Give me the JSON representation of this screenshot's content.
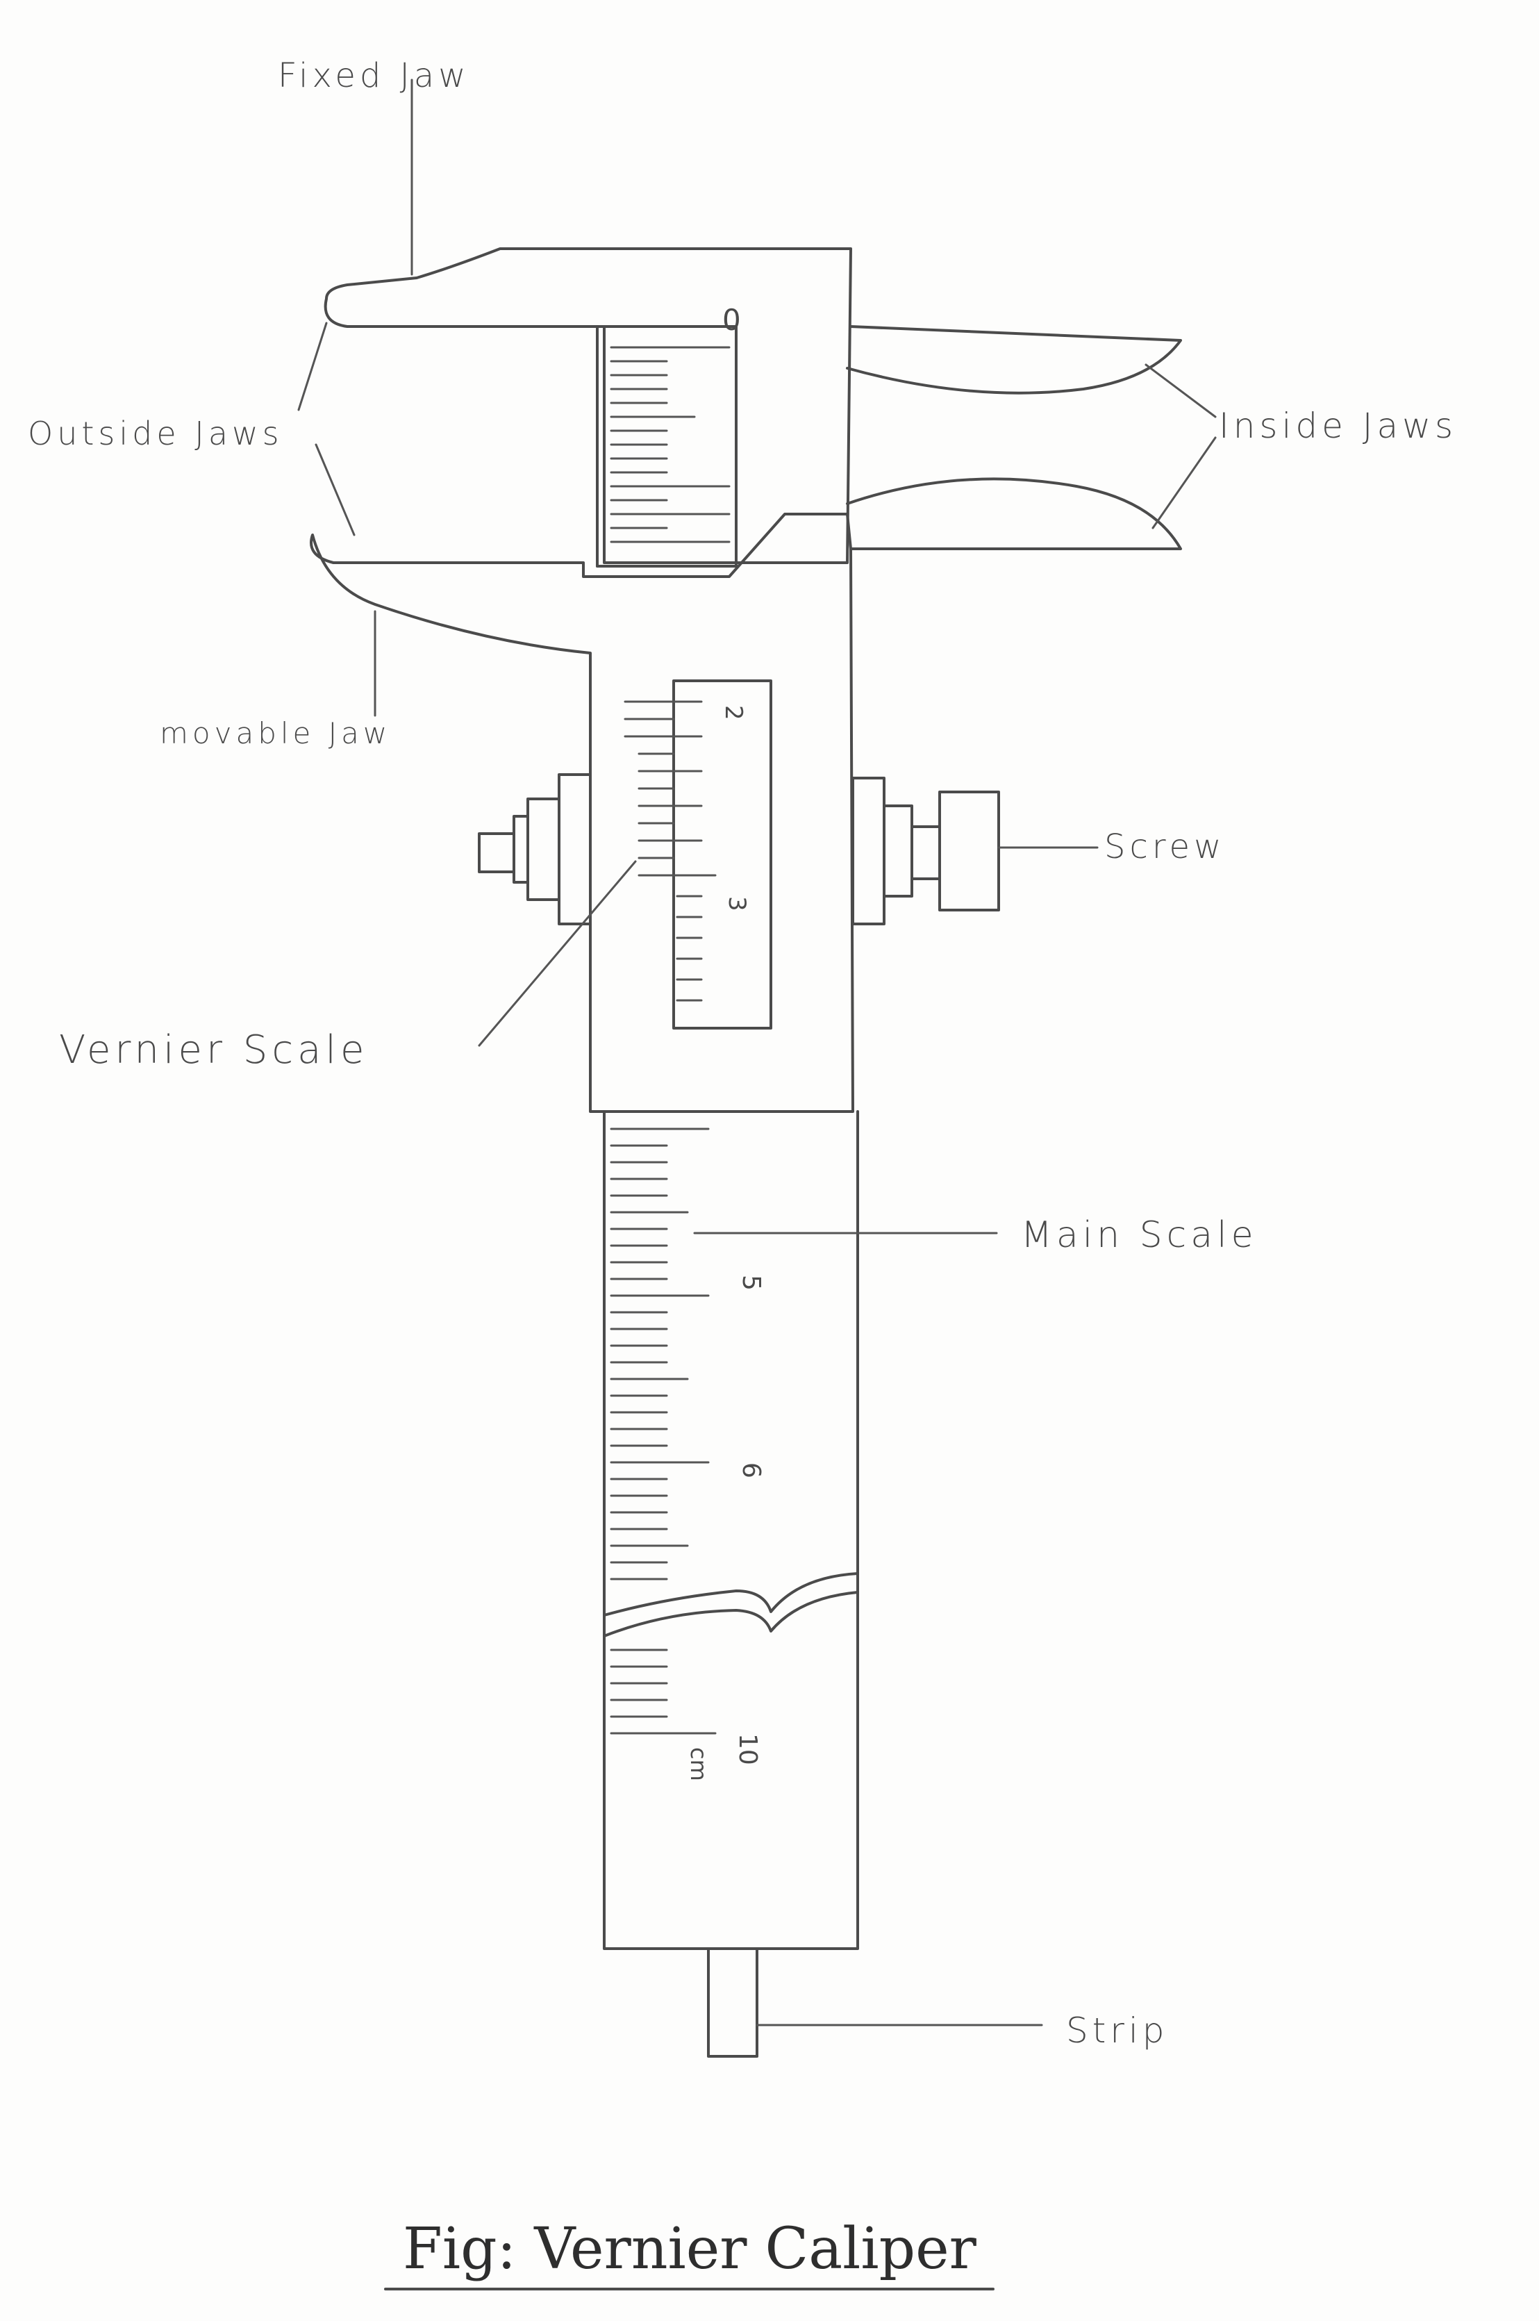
{
  "labels": {
    "fixed_jaw": "Fixed Jaw",
    "outside_jaws": "Outside Jaws",
    "inside_jaws": "Inside Jaws",
    "movable_jaw": "movable Jaw",
    "screw": "Screw",
    "vernier_scale": "Vernier Scale",
    "main_scale": "Main Scale",
    "strip": "Strip"
  },
  "scale_numbers": {
    "vernier_top": "0",
    "vernier_2": "2",
    "vernier_3": "3",
    "main_5": "5",
    "main_6": "6",
    "main_10": "10",
    "main_unit": "cm"
  },
  "caption": "Fig: Vernier Caliper"
}
